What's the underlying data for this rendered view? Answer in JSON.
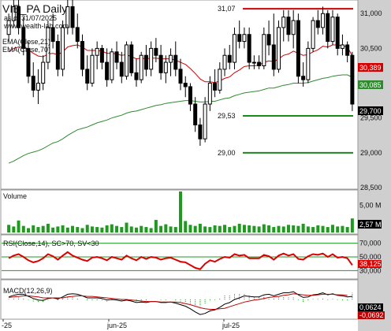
{
  "header": {
    "symbol_title": "VIE_PA Daily",
    "as_of": "as of 31/07/2025",
    "site": "www.wealth-lab.com",
    "ema21_label": "EMA(Close,21)",
    "ema70_label": "EMA(Close,70)"
  },
  "colors": {
    "background": "#ffffff",
    "right_axis_bg": "#cfcfcf",
    "ema21": "#d40000",
    "ema70": "#2f8a2f",
    "candle": "#000000",
    "volume": "#1f9a1f",
    "hline_red": "#d40000",
    "hline_green": "#1a8a1a",
    "rsi_line": "#dd0000",
    "rsi_bands": "#1f9a1f",
    "macd_line": "#000000",
    "macd_signal": "#c00000"
  },
  "chart_data": {
    "price_panel": {
      "type": "candlestick",
      "ylim": [
        28.5,
        31.15
      ],
      "yticks": [
        "31,000",
        "30,500",
        "30,000",
        "29,500",
        "29,000",
        "28,500"
      ],
      "hlines": [
        {
          "label": "31,07",
          "value": 31.07,
          "color": "red"
        },
        {
          "label": "29,53",
          "value": 29.53,
          "color": "green"
        },
        {
          "label": "29,00",
          "value": 29.0,
          "color": "green"
        }
      ],
      "last_value_badges": [
        {
          "label": "30,389",
          "series": "EMA(Close,21)"
        },
        {
          "label": "30,085",
          "series": "EMA(Close,70)"
        },
        {
          "label": "29,700",
          "series": "Close"
        }
      ],
      "candles": [
        [
          30.7,
          31.0,
          30.6,
          30.9
        ],
        [
          30.9,
          31.25,
          30.8,
          31.1
        ],
        [
          31.1,
          31.2,
          30.7,
          30.8
        ],
        [
          30.8,
          30.95,
          30.4,
          30.5
        ],
        [
          30.5,
          30.6,
          30.0,
          30.1
        ],
        [
          30.1,
          30.3,
          29.8,
          29.9
        ],
        [
          29.9,
          30.2,
          29.7,
          30.0
        ],
        [
          30.0,
          30.4,
          29.9,
          30.3
        ],
        [
          30.3,
          30.9,
          30.2,
          30.8
        ],
        [
          30.8,
          31.0,
          30.5,
          30.6
        ],
        [
          30.6,
          30.7,
          30.1,
          30.2
        ],
        [
          30.2,
          30.9,
          30.1,
          30.8
        ],
        [
          30.8,
          31.2,
          30.7,
          31.1
        ],
        [
          31.1,
          31.25,
          30.7,
          30.8
        ],
        [
          30.8,
          31.0,
          30.5,
          30.6
        ],
        [
          30.6,
          30.7,
          30.1,
          30.2
        ],
        [
          30.2,
          30.4,
          29.9,
          30.0
        ],
        [
          30.0,
          30.5,
          29.95,
          30.4
        ],
        [
          30.4,
          30.6,
          30.2,
          30.5
        ],
        [
          30.5,
          30.55,
          30.2,
          30.3
        ],
        [
          30.3,
          30.5,
          29.95,
          30.05
        ],
        [
          30.05,
          30.5,
          30.0,
          30.45
        ],
        [
          30.45,
          30.6,
          30.2,
          30.3
        ],
        [
          30.3,
          30.45,
          30.0,
          30.1
        ],
        [
          30.1,
          30.6,
          30.05,
          30.55
        ],
        [
          30.55,
          30.6,
          30.1,
          30.15
        ],
        [
          30.15,
          30.35,
          29.95,
          30.05
        ],
        [
          30.05,
          30.45,
          30.0,
          30.4
        ],
        [
          30.4,
          30.55,
          30.1,
          30.2
        ],
        [
          30.2,
          30.6,
          30.1,
          30.5
        ],
        [
          30.5,
          30.65,
          30.3,
          30.4
        ],
        [
          30.4,
          30.55,
          30.05,
          30.15
        ],
        [
          30.15,
          30.4,
          30.0,
          30.3
        ],
        [
          30.3,
          30.5,
          30.1,
          30.4
        ],
        [
          30.4,
          30.6,
          30.1,
          30.2
        ],
        [
          30.2,
          30.35,
          29.9,
          30.0
        ],
        [
          30.0,
          30.1,
          29.8,
          29.95
        ],
        [
          29.95,
          30.0,
          29.6,
          29.7
        ],
        [
          29.7,
          29.8,
          29.3,
          29.4
        ],
        [
          29.4,
          29.5,
          29.1,
          29.2
        ],
        [
          29.2,
          29.8,
          29.15,
          29.7
        ],
        [
          29.7,
          30.1,
          29.6,
          30.0
        ],
        [
          30.0,
          30.2,
          29.8,
          29.9
        ],
        [
          29.9,
          30.3,
          29.85,
          30.2
        ],
        [
          30.2,
          30.5,
          30.1,
          30.4
        ],
        [
          30.4,
          30.55,
          30.2,
          30.3
        ],
        [
          30.3,
          30.8,
          30.2,
          30.7
        ],
        [
          30.7,
          30.9,
          30.5,
          30.6
        ],
        [
          30.6,
          30.8,
          30.5,
          30.7
        ],
        [
          30.7,
          30.8,
          30.2,
          30.3
        ],
        [
          30.3,
          30.4,
          30.2,
          30.3
        ],
        [
          30.3,
          30.4,
          30.2,
          30.25
        ],
        [
          30.25,
          30.8,
          30.2,
          30.7
        ],
        [
          30.7,
          30.9,
          30.4,
          30.55
        ],
        [
          30.55,
          31.0,
          30.1,
          30.2
        ],
        [
          30.2,
          30.9,
          30.15,
          30.8
        ],
        [
          30.8,
          31.05,
          30.6,
          30.95
        ],
        [
          30.95,
          31.05,
          30.6,
          30.7
        ],
        [
          30.7,
          31.05,
          30.5,
          30.9
        ],
        [
          30.9,
          31.0,
          30.0,
          30.1
        ],
        [
          30.1,
          30.3,
          29.95,
          30.05
        ],
        [
          30.05,
          30.6,
          30.0,
          30.5
        ],
        [
          30.5,
          30.95,
          30.45,
          30.9
        ],
        [
          30.9,
          31.05,
          30.7,
          30.8
        ],
        [
          30.8,
          31.1,
          30.7,
          31.0
        ],
        [
          31.0,
          31.05,
          30.5,
          30.6
        ],
        [
          30.6,
          31.05,
          30.55,
          30.95
        ],
        [
          30.95,
          31.0,
          30.4,
          30.5
        ],
        [
          30.5,
          30.7,
          30.4,
          30.55
        ],
        [
          30.55,
          30.6,
          30.3,
          30.4
        ],
        [
          30.4,
          30.45,
          29.6,
          29.7
        ]
      ],
      "ema21": [
        30.45,
        30.5,
        30.52,
        30.52,
        30.48,
        30.43,
        30.39,
        30.38,
        30.42,
        30.43,
        30.41,
        30.45,
        30.52,
        30.54,
        30.55,
        30.52,
        30.47,
        30.47,
        30.47,
        30.46,
        30.43,
        30.43,
        30.42,
        30.4,
        30.41,
        30.38,
        30.35,
        30.36,
        30.35,
        30.36,
        30.36,
        30.35,
        30.35,
        30.35,
        30.33,
        30.3,
        30.27,
        30.21,
        30.14,
        30.06,
        30.02,
        30.02,
        30.01,
        30.03,
        30.07,
        30.09,
        30.15,
        30.19,
        30.24,
        30.25,
        30.25,
        30.26,
        30.3,
        30.32,
        30.31,
        30.35,
        30.4,
        30.42,
        30.46,
        30.43,
        30.4,
        30.41,
        30.45,
        30.48,
        30.53,
        30.52,
        30.55,
        30.55,
        30.54,
        30.52,
        30.39
      ],
      "ema70": [
        28.85,
        28.88,
        28.92,
        28.96,
        28.99,
        29.01,
        29.03,
        29.06,
        29.1,
        29.14,
        29.16,
        29.2,
        29.25,
        29.29,
        29.33,
        29.35,
        29.37,
        29.4,
        29.43,
        29.45,
        29.47,
        29.5,
        29.52,
        29.54,
        29.57,
        29.59,
        29.6,
        29.62,
        29.64,
        29.66,
        29.68,
        29.69,
        29.71,
        29.72,
        29.73,
        29.74,
        29.75,
        29.75,
        29.74,
        29.73,
        29.73,
        29.74,
        29.74,
        29.76,
        29.78,
        29.79,
        29.82,
        29.84,
        29.86,
        29.87,
        29.88,
        29.89,
        29.91,
        29.93,
        29.93,
        29.95,
        29.97,
        29.98,
        30.0,
        30.0,
        30.0,
        30.01,
        30.03,
        30.05,
        30.07,
        30.08,
        30.1,
        30.11,
        30.12,
        30.12,
        30.085
      ]
    },
    "volume_panel": {
      "label": "Volume",
      "ticks": [
        "5,00 M"
      ],
      "last_label": "2,57 M",
      "values": [
        1.4,
        1.1,
        2.2,
        1.2,
        0.8,
        1.3,
        1.0,
        1.2,
        1.6,
        0.9,
        1.1,
        1.3,
        0.9,
        1.2,
        1.0,
        0.8,
        1.4,
        1.1,
        1.0,
        0.9,
        1.3,
        1.5,
        1.2,
        1.0,
        1.8,
        1.1,
        0.9,
        1.2,
        1.0,
        0.8,
        2.3,
        1.2,
        1.5,
        1.1,
        1.0,
        7.5,
        2.1,
        1.4,
        1.2,
        1.6,
        1.1,
        1.0,
        1.3,
        1.2,
        1.4,
        1.0,
        1.2,
        1.6,
        1.4,
        1.3,
        1.2,
        1.1,
        1.5,
        1.3,
        1.0,
        1.2,
        1.1,
        1.4,
        1.3,
        1.2,
        1.6,
        1.1,
        1.0,
        1.3,
        1.2,
        1.0,
        1.4,
        1.1,
        1.2,
        1.0,
        2.57
      ],
      "ylim": [
        0,
        7.5
      ]
    },
    "rsi_panel": {
      "label": "RSI(Close,14), SC>70, SV<30",
      "ticks": [
        "70,000",
        "50,000",
        "30,000"
      ],
      "last_label": "38,125",
      "ylim": [
        20,
        80
      ],
      "values": [
        48,
        52,
        54,
        50,
        45,
        42,
        44,
        48,
        54,
        51,
        46,
        52,
        57,
        52,
        49,
        46,
        44,
        49,
        50,
        48,
        45,
        50,
        48,
        46,
        52,
        48,
        45,
        50,
        47,
        50,
        49,
        46,
        48,
        49,
        46,
        43,
        42,
        38,
        34,
        32,
        40,
        45,
        43,
        47,
        50,
        49,
        54,
        52,
        53,
        48,
        48,
        48,
        53,
        51,
        46,
        52,
        55,
        52,
        54,
        47,
        46,
        51,
        54,
        53,
        55,
        50,
        54,
        49,
        50,
        48,
        38
      ]
    },
    "macd_panel": {
      "label": "MACD(12,26,9)",
      "labels": [
        "0,0624",
        "-0,0692"
      ],
      "ylim": [
        -0.35,
        0.35
      ],
      "macd": [
        0.05,
        0.08,
        0.1,
        0.1,
        0.06,
        0.02,
        -0.01,
        -0.02,
        0.02,
        0.03,
        0.01,
        0.05,
        0.1,
        0.11,
        0.1,
        0.07,
        0.03,
        0.03,
        0.03,
        0.02,
        -0.01,
        0.0,
        -0.01,
        -0.03,
        -0.01,
        -0.03,
        -0.06,
        -0.05,
        -0.06,
        -0.04,
        -0.04,
        -0.06,
        -0.06,
        -0.05,
        -0.07,
        -0.1,
        -0.13,
        -0.18,
        -0.24,
        -0.29,
        -0.27,
        -0.22,
        -0.2,
        -0.15,
        -0.09,
        -0.06,
        0.0,
        0.03,
        0.07,
        0.06,
        0.05,
        0.05,
        0.09,
        0.1,
        0.07,
        0.1,
        0.13,
        0.13,
        0.15,
        0.09,
        0.04,
        0.05,
        0.09,
        0.1,
        0.13,
        0.09,
        0.11,
        0.08,
        0.07,
        0.05,
        0.06
      ],
      "signal": [
        0.04,
        0.05,
        0.06,
        0.07,
        0.07,
        0.06,
        0.05,
        0.03,
        0.03,
        0.03,
        0.03,
        0.03,
        0.05,
        0.06,
        0.07,
        0.07,
        0.06,
        0.06,
        0.05,
        0.04,
        0.03,
        0.02,
        0.01,
        0.0,
        0.0,
        -0.01,
        -0.02,
        -0.03,
        -0.04,
        -0.04,
        -0.04,
        -0.05,
        -0.05,
        -0.05,
        -0.05,
        -0.06,
        -0.08,
        -0.1,
        -0.13,
        -0.16,
        -0.18,
        -0.19,
        -0.19,
        -0.18,
        -0.17,
        -0.14,
        -0.11,
        -0.08,
        -0.05,
        -0.03,
        -0.01,
        0.0,
        0.02,
        0.04,
        0.05,
        0.06,
        0.08,
        0.09,
        0.11,
        0.1,
        0.09,
        0.08,
        0.08,
        0.09,
        0.1,
        0.1,
        0.1,
        0.09,
        0.09,
        0.08,
        -0.0692
      ]
    },
    "xaxis": {
      "labels": [
        "-25",
        "jun-25",
        "jul-25"
      ]
    }
  }
}
